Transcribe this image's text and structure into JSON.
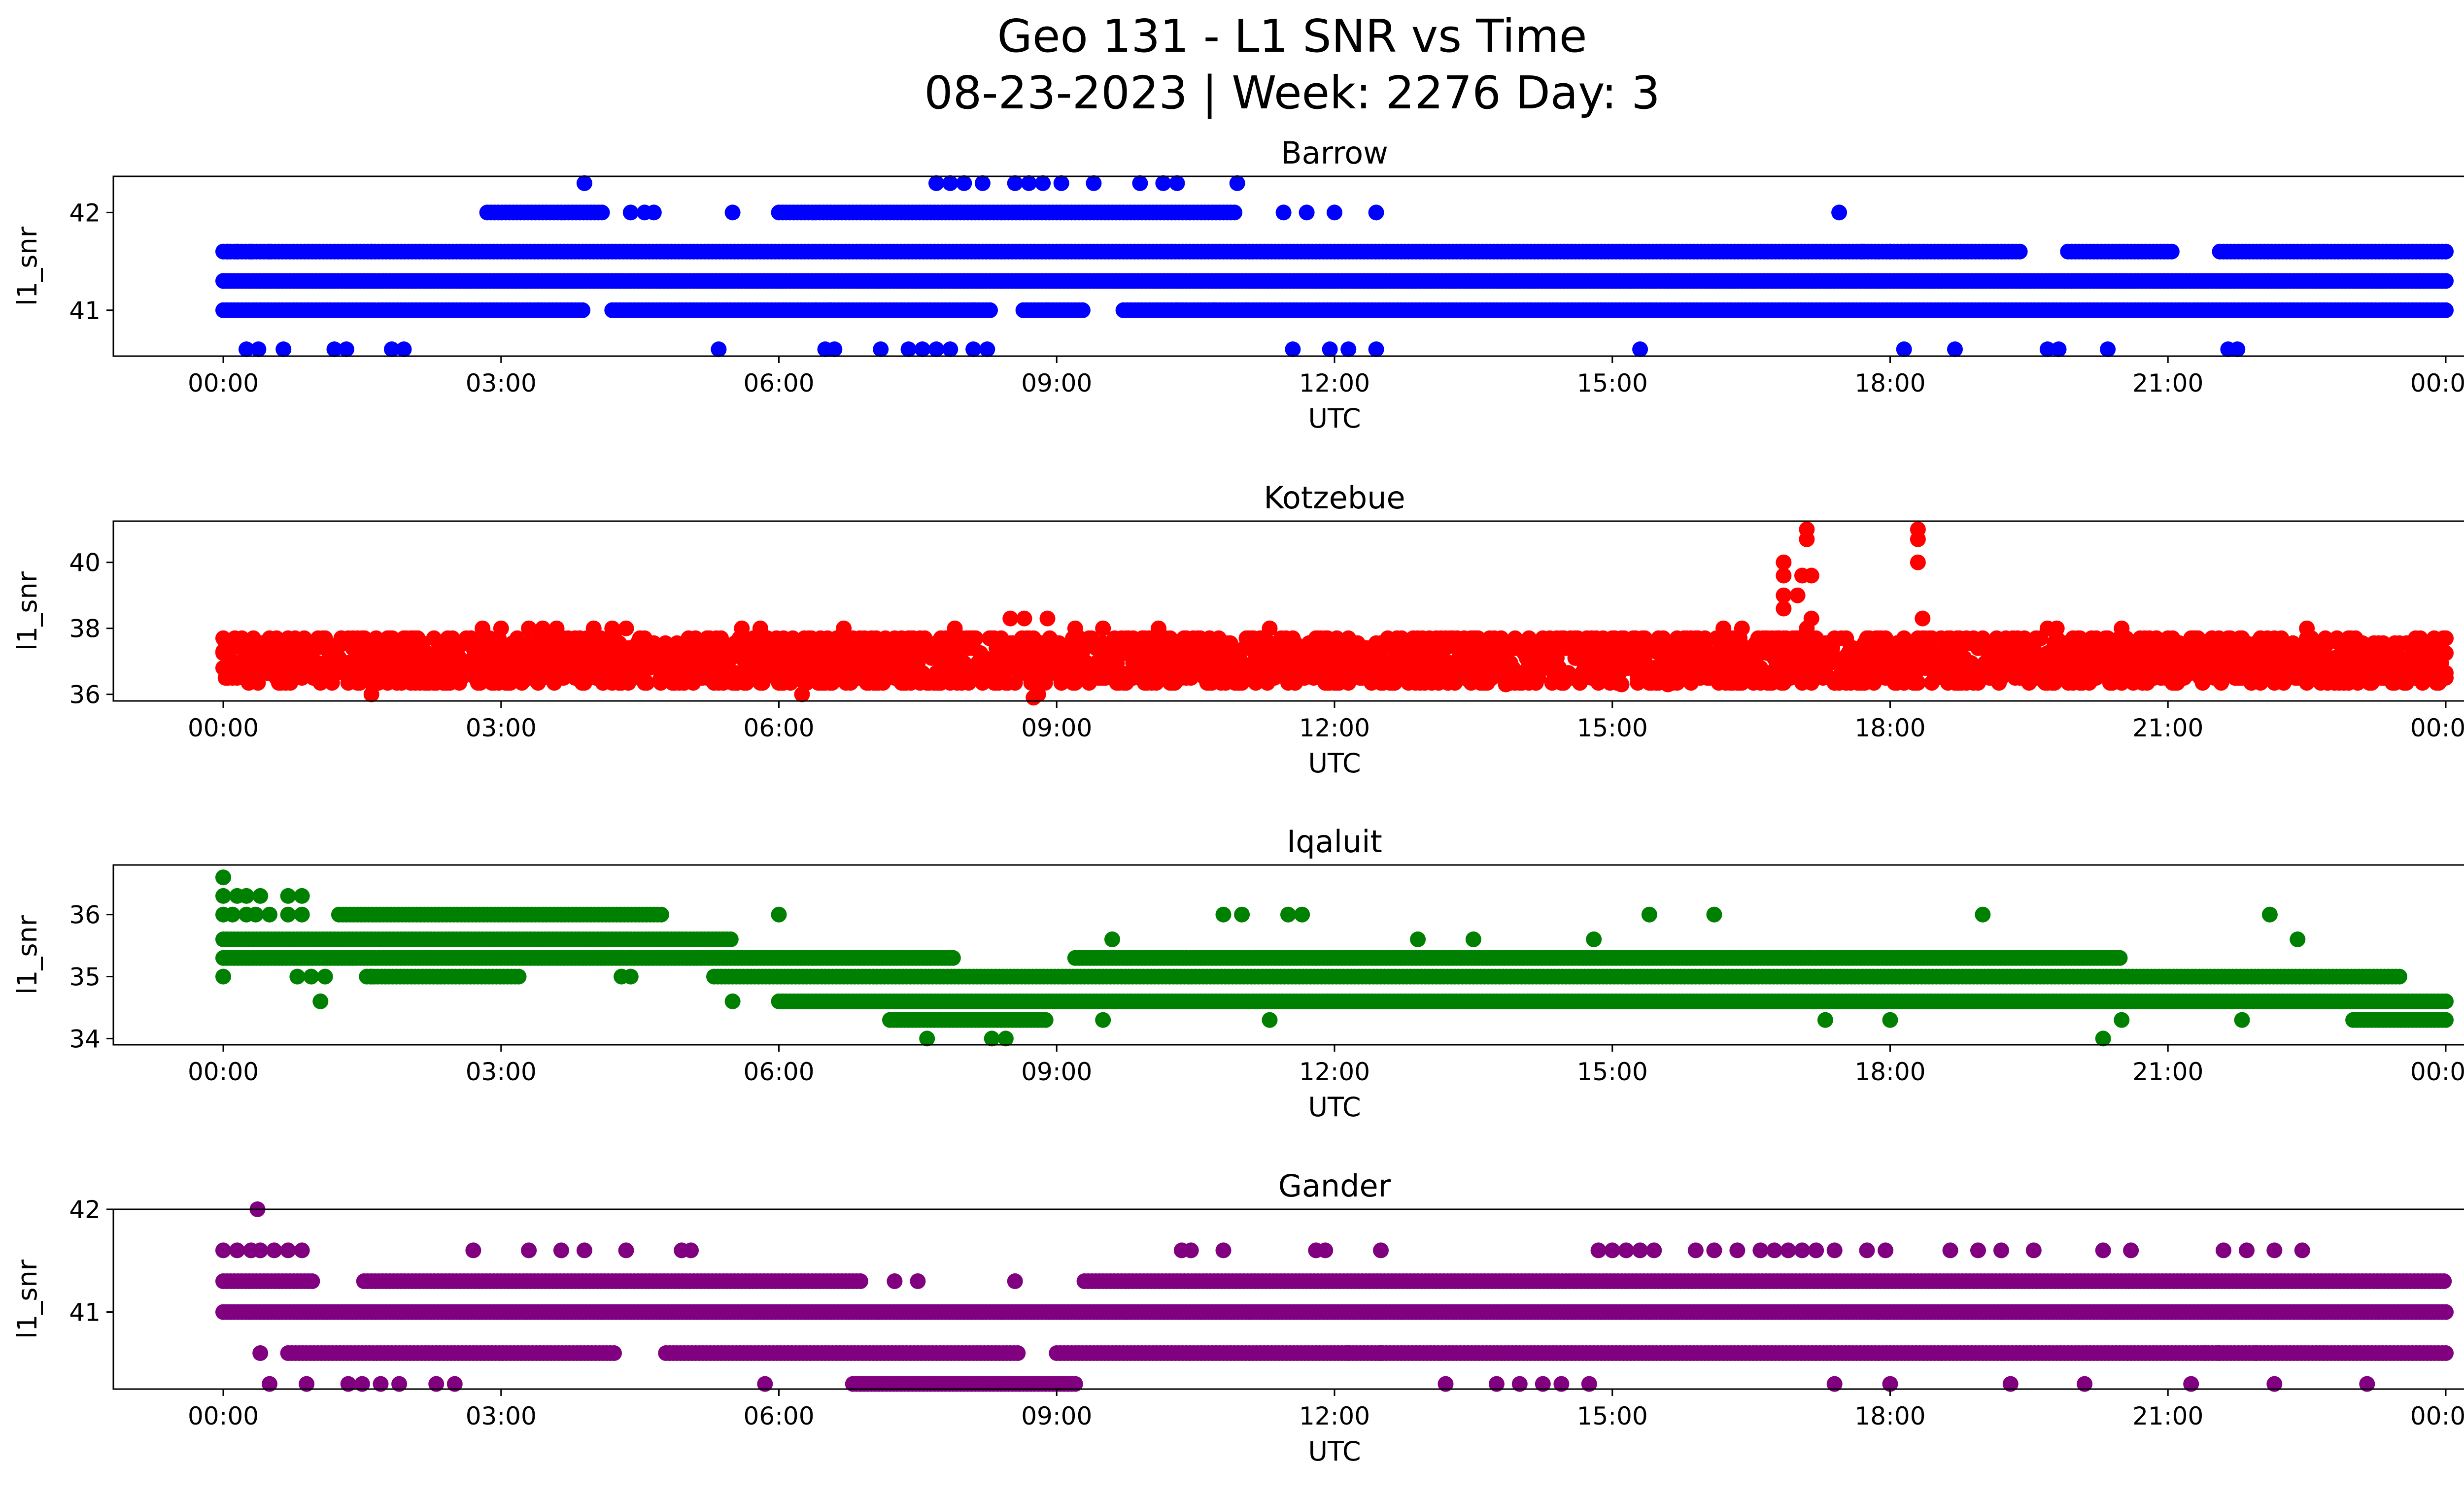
{
  "figure": {
    "title_line1": "Geo 131 - L1 SNR vs Time",
    "title_line2": "08-23-2023 | Week: 2276 Day: 3"
  },
  "chart_data": [
    {
      "type": "scatter",
      "title": "Barrow",
      "xlabel": "UTC",
      "ylabel": "l1_snr",
      "color": "#0000ff",
      "xlim": [
        0,
        24
      ],
      "ylim": [
        40.53,
        42.37
      ],
      "xticks": [
        "00:00",
        "03:00",
        "06:00",
        "09:00",
        "12:00",
        "15:00",
        "18:00",
        "21:00",
        "00:00"
      ],
      "yticks": [
        41,
        42
      ],
      "dense_bands": [
        {
          "y": 41.3,
          "from": 0,
          "to": 24
        },
        {
          "y": 41.6,
          "from": 0,
          "to": 24,
          "gaps": [
            [
              19.4,
              19.9
            ],
            [
              21.05,
              21.55
            ]
          ]
        },
        {
          "y": 41.0,
          "from": 0,
          "to": 24,
          "gaps": [
            [
              3.9,
              4.2
            ],
            [
              8.3,
              8.6
            ],
            [
              9.3,
              9.7
            ]
          ]
        },
        {
          "y": 42.0,
          "from": 2.85,
          "to": 4.1
        },
        {
          "y": 42.0,
          "from": 6.0,
          "to": 10.95
        }
      ],
      "points": [
        [
          0.25,
          40.6
        ],
        [
          0.38,
          40.6
        ],
        [
          0.65,
          40.6
        ],
        [
          1.2,
          40.6
        ],
        [
          1.33,
          40.6
        ],
        [
          1.82,
          40.6
        ],
        [
          1.95,
          40.6
        ],
        [
          5.35,
          40.6
        ],
        [
          6.5,
          40.6
        ],
        [
          6.6,
          40.6
        ],
        [
          7.1,
          40.6
        ],
        [
          7.4,
          40.6
        ],
        [
          7.55,
          40.6
        ],
        [
          7.7,
          40.6
        ],
        [
          7.85,
          40.6
        ],
        [
          8.1,
          40.6
        ],
        [
          8.25,
          40.6
        ],
        [
          11.55,
          40.6
        ],
        [
          11.95,
          40.6
        ],
        [
          12.15,
          40.6
        ],
        [
          12.45,
          40.6
        ],
        [
          15.3,
          40.6
        ],
        [
          18.15,
          40.6
        ],
        [
          18.7,
          40.6
        ],
        [
          19.7,
          40.6
        ],
        [
          19.82,
          40.6
        ],
        [
          20.35,
          40.6
        ],
        [
          21.65,
          40.6
        ],
        [
          21.75,
          40.6
        ],
        [
          3.9,
          42.3
        ],
        [
          7.7,
          42.3
        ],
        [
          7.85,
          42.3
        ],
        [
          8.0,
          42.3
        ],
        [
          8.2,
          42.3
        ],
        [
          8.55,
          42.3
        ],
        [
          8.7,
          42.3
        ],
        [
          8.85,
          42.3
        ],
        [
          9.05,
          42.3
        ],
        [
          9.4,
          42.3
        ],
        [
          9.9,
          42.3
        ],
        [
          10.15,
          42.3
        ],
        [
          10.3,
          42.3
        ],
        [
          10.95,
          42.3
        ],
        [
          0.05,
          41.6
        ],
        [
          0.15,
          41.6
        ],
        [
          0.3,
          41.6
        ],
        [
          0.5,
          41.6
        ],
        [
          1.6,
          41.6
        ],
        [
          11.7,
          42.0
        ],
        [
          12.0,
          42.0
        ],
        [
          12.45,
          42.0
        ],
        [
          11.45,
          42.0
        ],
        [
          4.4,
          42.0
        ],
        [
          4.55,
          42.0
        ],
        [
          4.65,
          42.0
        ],
        [
          5.5,
          42.0
        ],
        [
          17.45,
          42.0
        ],
        [
          17.7,
          41.6
        ],
        [
          18.0,
          41.6
        ],
        [
          18.2,
          41.6
        ],
        [
          3.4,
          41.0
        ],
        [
          6.4,
          41.0
        ],
        [
          6.55,
          41.0
        ],
        [
          10.3,
          41.0
        ],
        [
          10.7,
          41.0
        ],
        [
          11.05,
          41.0
        ],
        [
          8.1,
          41.0
        ],
        [
          8.9,
          41.0
        ]
      ]
    },
    {
      "type": "scatter",
      "title": "Kotzebue",
      "xlabel": "UTC",
      "ylabel": "l1_snr",
      "color": "#ff0000",
      "xlim": [
        0,
        24
      ],
      "ylim": [
        35.8,
        41.25
      ],
      "xticks": [
        "00:00",
        "03:00",
        "06:00",
        "09:00",
        "12:00",
        "15:00",
        "18:00",
        "21:00",
        "00:00"
      ],
      "yticks": [
        36,
        38,
        40
      ],
      "noise_band": {
        "center": 37.1,
        "spread": 0.75
      },
      "points": [
        [
          1.6,
          36.0
        ],
        [
          6.25,
          36.0
        ],
        [
          8.8,
          36.0
        ],
        [
          8.75,
          35.9
        ],
        [
          0.0,
          37.3
        ],
        [
          2.8,
          38.0
        ],
        [
          3.0,
          38.0
        ],
        [
          3.3,
          38.0
        ],
        [
          3.45,
          38.0
        ],
        [
          3.6,
          38.0
        ],
        [
          4.0,
          38.0
        ],
        [
          4.2,
          38.0
        ],
        [
          4.35,
          38.0
        ],
        [
          5.6,
          38.0
        ],
        [
          5.8,
          38.0
        ],
        [
          6.7,
          38.0
        ],
        [
          7.9,
          38.0
        ],
        [
          8.5,
          38.3
        ],
        [
          8.65,
          38.3
        ],
        [
          8.9,
          38.3
        ],
        [
          9.2,
          38.0
        ],
        [
          9.5,
          38.0
        ],
        [
          10.1,
          38.0
        ],
        [
          11.3,
          38.0
        ],
        [
          16.2,
          38.0
        ],
        [
          16.4,
          38.0
        ],
        [
          19.7,
          38.0
        ],
        [
          19.8,
          38.0
        ],
        [
          20.5,
          38.0
        ],
        [
          22.5,
          38.0
        ],
        [
          13.85,
          36.3
        ],
        [
          15.1,
          36.3
        ],
        [
          15.6,
          36.3
        ],
        [
          16.85,
          40.0
        ],
        [
          16.85,
          39.6
        ],
        [
          16.85,
          39.0
        ],
        [
          16.85,
          38.6
        ],
        [
          17.05,
          39.6
        ],
        [
          17.15,
          39.6
        ],
        [
          17.0,
          39.0
        ],
        [
          17.1,
          41.0
        ],
        [
          17.1,
          40.7
        ],
        [
          17.1,
          38.0
        ],
        [
          17.15,
          38.3
        ],
        [
          18.3,
          41.0
        ],
        [
          18.3,
          40.7
        ],
        [
          18.3,
          40.0
        ],
        [
          18.35,
          38.3
        ]
      ]
    },
    {
      "type": "scatter",
      "title": "Iqaluit",
      "xlabel": "UTC",
      "ylabel": "l1_snr",
      "color": "#008000",
      "xlim": [
        0,
        24
      ],
      "ylim": [
        33.9,
        36.8
      ],
      "xticks": [
        "00:00",
        "03:00",
        "06:00",
        "09:00",
        "12:00",
        "15:00",
        "18:00",
        "21:00",
        "00:00"
      ],
      "yticks": [
        34,
        35,
        36
      ],
      "dense_bands": [
        {
          "y": 35.6,
          "from": 0,
          "to": 5.5
        },
        {
          "y": 35.3,
          "from": 0,
          "to": 7.9
        },
        {
          "y": 35.0,
          "from": 5.3,
          "to": 23.5
        },
        {
          "y": 34.6,
          "from": 6.0,
          "to": 24
        },
        {
          "y": 35.3,
          "from": 9.2,
          "to": 20.5
        },
        {
          "y": 34.3,
          "from": 7.2,
          "to": 8.9
        },
        {
          "y": 34.3,
          "from": 23.0,
          "to": 24
        },
        {
          "y": 36.0,
          "from": 1.25,
          "to": 4.75
        },
        {
          "y": 35.0,
          "from": 1.55,
          "to": 3.2
        }
      ],
      "points": [
        [
          0.0,
          36.6
        ],
        [
          0.0,
          36.3
        ],
        [
          0.15,
          36.3
        ],
        [
          0.25,
          36.3
        ],
        [
          0.4,
          36.3
        ],
        [
          0.7,
          36.3
        ],
        [
          0.85,
          36.3
        ],
        [
          0.0,
          36.0
        ],
        [
          0.1,
          36.0
        ],
        [
          0.25,
          36.0
        ],
        [
          0.35,
          36.0
        ],
        [
          0.5,
          36.0
        ],
        [
          0.7,
          36.0
        ],
        [
          0.85,
          36.0
        ],
        [
          0.0,
          35.0
        ],
        [
          0.8,
          35.0
        ],
        [
          0.95,
          35.0
        ],
        [
          1.1,
          35.0
        ],
        [
          1.05,
          34.6
        ],
        [
          1.6,
          35.0
        ],
        [
          4.3,
          35.0
        ],
        [
          4.4,
          35.0
        ],
        [
          6.0,
          36.0
        ],
        [
          5.5,
          34.6
        ],
        [
          7.6,
          34.0
        ],
        [
          8.3,
          34.0
        ],
        [
          8.45,
          34.0
        ],
        [
          9.5,
          34.3
        ],
        [
          11.3,
          34.3
        ],
        [
          10.8,
          36.0
        ],
        [
          11.0,
          36.0
        ],
        [
          11.5,
          36.0
        ],
        [
          11.65,
          36.0
        ],
        [
          15.4,
          36.0
        ],
        [
          16.1,
          36.0
        ],
        [
          19.0,
          36.0
        ],
        [
          22.1,
          36.0
        ],
        [
          20.3,
          34.0
        ],
        [
          17.3,
          34.3
        ],
        [
          18.0,
          34.3
        ],
        [
          12.9,
          35.6
        ],
        [
          13.5,
          35.6
        ],
        [
          14.8,
          35.6
        ],
        [
          9.6,
          35.6
        ],
        [
          22.4,
          35.6
        ],
        [
          20.5,
          34.3
        ],
        [
          21.8,
          34.3
        ]
      ]
    },
    {
      "type": "scatter",
      "title": "Gander",
      "xlabel": "UTC",
      "ylabel": "l1_snr",
      "color": "#800080",
      "xlim": [
        0,
        24
      ],
      "ylim": [
        40.25,
        42.0
      ],
      "xticks": [
        "00:00",
        "03:00",
        "06:00",
        "09:00",
        "12:00",
        "15:00",
        "18:00",
        "21:00",
        "00:00"
      ],
      "yticks": [
        41,
        42
      ],
      "dense_bands": [
        {
          "y": 41.0,
          "from": 0,
          "to": 24
        },
        {
          "y": 41.3,
          "from": 0,
          "to": 6.9,
          "gaps": [
            [
              1.0,
              1.5
            ]
          ]
        },
        {
          "y": 41.3,
          "from": 9.3,
          "to": 24
        },
        {
          "y": 40.6,
          "from": 0.7,
          "to": 8.6,
          "gaps": [
            [
              4.25,
              4.75
            ]
          ]
        },
        {
          "y": 40.6,
          "from": 9.0,
          "to": 24
        },
        {
          "y": 40.3,
          "from": 6.8,
          "to": 9.2
        }
      ],
      "points": [
        [
          0.37,
          42.0
        ],
        [
          0.0,
          41.6
        ],
        [
          0.15,
          41.6
        ],
        [
          0.3,
          41.6
        ],
        [
          0.4,
          41.6
        ],
        [
          0.55,
          41.6
        ],
        [
          0.7,
          41.6
        ],
        [
          0.85,
          41.6
        ],
        [
          2.7,
          41.6
        ],
        [
          3.3,
          41.6
        ],
        [
          3.65,
          41.6
        ],
        [
          3.9,
          41.6
        ],
        [
          4.35,
          41.6
        ],
        [
          4.95,
          41.6
        ],
        [
          5.05,
          41.6
        ],
        [
          10.35,
          41.6
        ],
        [
          10.45,
          41.6
        ],
        [
          10.8,
          41.6
        ],
        [
          11.8,
          41.6
        ],
        [
          11.9,
          41.6
        ],
        [
          12.5,
          41.6
        ],
        [
          14.85,
          41.6
        ],
        [
          15.0,
          41.6
        ],
        [
          15.15,
          41.6
        ],
        [
          15.3,
          41.6
        ],
        [
          15.45,
          41.6
        ],
        [
          15.9,
          41.6
        ],
        [
          16.1,
          41.6
        ],
        [
          16.35,
          41.6
        ],
        [
          16.6,
          41.6
        ],
        [
          16.75,
          41.6
        ],
        [
          16.9,
          41.6
        ],
        [
          17.05,
          41.6
        ],
        [
          17.2,
          41.6
        ],
        [
          17.4,
          41.6
        ],
        [
          17.75,
          41.6
        ],
        [
          17.95,
          41.6
        ],
        [
          18.65,
          41.6
        ],
        [
          18.95,
          41.6
        ],
        [
          19.2,
          41.6
        ],
        [
          19.55,
          41.6
        ],
        [
          20.3,
          41.6
        ],
        [
          20.6,
          41.6
        ],
        [
          21.6,
          41.6
        ],
        [
          21.85,
          41.6
        ],
        [
          22.15,
          41.6
        ],
        [
          22.45,
          41.6
        ],
        [
          0.4,
          40.6
        ],
        [
          0.5,
          40.3
        ],
        [
          0.9,
          40.3
        ],
        [
          1.35,
          40.3
        ],
        [
          1.5,
          40.3
        ],
        [
          1.7,
          40.3
        ],
        [
          1.9,
          40.3
        ],
        [
          2.3,
          40.3
        ],
        [
          2.5,
          40.3
        ],
        [
          5.85,
          40.3
        ],
        [
          13.2,
          40.3
        ],
        [
          13.75,
          40.3
        ],
        [
          14.0,
          40.3
        ],
        [
          14.25,
          40.3
        ],
        [
          14.45,
          40.3
        ],
        [
          14.75,
          40.3
        ],
        [
          17.4,
          40.3
        ],
        [
          18.0,
          40.3
        ],
        [
          19.3,
          40.3
        ],
        [
          20.1,
          40.3
        ],
        [
          21.25,
          40.3
        ],
        [
          22.15,
          40.3
        ],
        [
          23.15,
          40.3
        ],
        [
          7.25,
          41.3
        ],
        [
          7.5,
          41.3
        ],
        [
          8.55,
          41.3
        ],
        [
          12.15,
          40.6
        ],
        [
          12.5,
          40.6
        ],
        [
          21.4,
          40.6
        ],
        [
          21.55,
          40.6
        ],
        [
          21.95,
          40.6
        ]
      ]
    }
  ]
}
